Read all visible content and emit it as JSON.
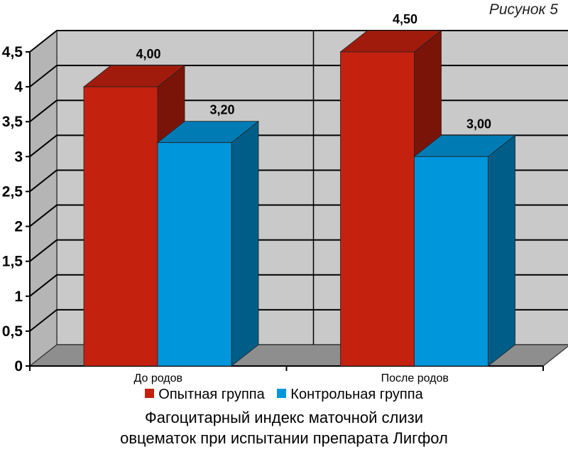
{
  "figure_label": "Рисунок 5",
  "caption_line1": "Фагоцитарный индекс маточной слизи",
  "caption_line2": "овцематок при испытании препарата Лигфол",
  "colors": {
    "experimental": "#c4210f",
    "control": "#0096dc",
    "wall": "#c9c9c9",
    "floor": "#8e8e8e"
  },
  "chart_data": {
    "type": "bar",
    "categories": [
      "До родов",
      "После родов"
    ],
    "series": [
      {
        "name": "Опытная группа",
        "values": [
          4.0,
          4.5
        ],
        "labels": [
          "4,00",
          "4,50"
        ]
      },
      {
        "name": "Контрольная группа",
        "values": [
          3.2,
          3.0
        ],
        "labels": [
          "3,20",
          "3,00"
        ]
      }
    ],
    "ylim": [
      0,
      4.5
    ],
    "yticks": [
      "0",
      "0,5",
      "1",
      "1,5",
      "2",
      "2,5",
      "3",
      "3,5",
      "4",
      "4,5"
    ],
    "grid": true,
    "legend_position": "bottom",
    "title": "",
    "xlabel": "",
    "ylabel": ""
  }
}
